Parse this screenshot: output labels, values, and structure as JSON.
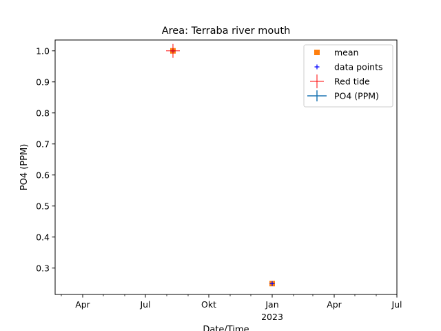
{
  "chart_data": {
    "type": "scatter",
    "title": "Area: Terraba river mouth",
    "xlabel": "Date/Time",
    "ylabel": "PO4 (PPM)",
    "xlim": [
      "2022-02-20",
      "2023-07-01"
    ],
    "ylim": [
      0.215,
      1.035
    ],
    "y_ticks": [
      0.3,
      0.4,
      0.5,
      0.6,
      0.7,
      0.8,
      0.9,
      1.0
    ],
    "y_tick_labels": [
      "0.3",
      "0.4",
      "0.5",
      "0.6",
      "0.7",
      "0.8",
      "0.9",
      "1.0"
    ],
    "x_major_ticks": [
      {
        "date": "2022-04-01",
        "label": "Apr"
      },
      {
        "date": "2022-07-01",
        "label": "Jul"
      },
      {
        "date": "2022-10-01",
        "label": "Okt"
      },
      {
        "date": "2023-01-01",
        "label": "Jan",
        "sublabel": "2023"
      },
      {
        "date": "2023-04-01",
        "label": "Apr"
      },
      {
        "date": "2023-07-01",
        "label": "Jul"
      }
    ],
    "x_minor_ticks": [
      "2022-03-01",
      "2022-05-01",
      "2022-06-01",
      "2022-08-01",
      "2022-09-01",
      "2022-11-01",
      "2022-12-01",
      "2023-02-01",
      "2023-03-01",
      "2023-05-01",
      "2023-06-01"
    ],
    "grid": false,
    "legend_position": "top-right",
    "series": [
      {
        "name": "mean",
        "marker": "square",
        "color": "#ff7f0e",
        "points": [
          {
            "x": "2022-08-10",
            "y": 1.0
          },
          {
            "x": "2023-01-01",
            "y": 0.25
          }
        ]
      },
      {
        "name": "data points",
        "marker": "plus",
        "color": "#0000ff",
        "points": [
          {
            "x": "2022-08-10",
            "y": 1.0
          },
          {
            "x": "2023-01-01",
            "y": 0.25
          }
        ]
      },
      {
        "name": "Red tide",
        "marker": "plus-large",
        "color": "#ff0000",
        "points": [
          {
            "x": "2022-08-10",
            "y": 1.0
          }
        ]
      },
      {
        "name": "PO4 (PPM)",
        "marker": "errorbar",
        "color": "#1f77b4",
        "points": []
      }
    ]
  }
}
